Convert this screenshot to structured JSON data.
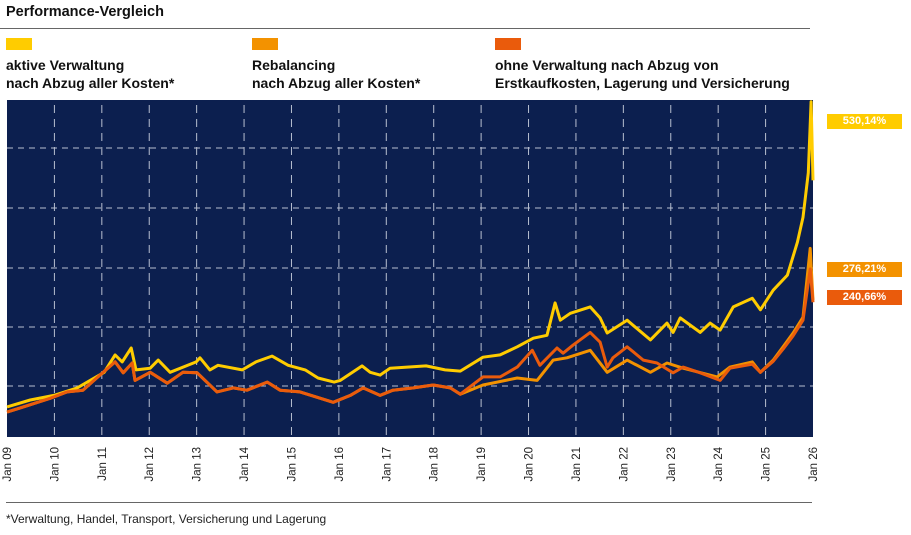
{
  "title": "Performance-Vergleich",
  "footnote": "*Verwaltung, Handel, Transport, Versicherung und Lagerung",
  "chart_data": {
    "type": "line",
    "title": "Performance-Vergleich",
    "xlabel": "",
    "ylabel": "",
    "x_tick_labels": [
      "Jan 09",
      "Jan 10",
      "Jan 11",
      "Jan 12",
      "Jan 13",
      "Jan 14",
      "Jan 15",
      "Jan 16",
      "Jan 17",
      "Jan 18",
      "Jan 19",
      "Jan 20",
      "Jan 21",
      "Jan 22",
      "Jan 23",
      "Jan 24",
      "Jan 25",
      "Jan 26"
    ],
    "x_ticks": [
      2009,
      2010,
      2011,
      2012,
      2013,
      2014,
      2015,
      2016,
      2017,
      2018,
      2019,
      2020,
      2021,
      2022,
      2023,
      2024,
      2025,
      2026
    ],
    "xlim": [
      2009,
      2026
    ],
    "ylim": [
      -50,
      533
    ],
    "y_unit": "%",
    "grid": true,
    "background": "#0c1f4f",
    "legend_position": "top",
    "series": [
      {
        "name_line1": "aktive Verwaltung",
        "name_line2": "nach Abzug aller Kosten*",
        "color": "#ffcc00",
        "end_label": "530,14%",
        "points": [
          [
            2009.0,
            2
          ],
          [
            2009.49,
            14
          ],
          [
            2009.99,
            22
          ],
          [
            2010.48,
            35
          ],
          [
            2011.05,
            62
          ],
          [
            2011.28,
            92
          ],
          [
            2011.43,
            80
          ],
          [
            2011.62,
            104
          ],
          [
            2011.72,
            66
          ],
          [
            2012.02,
            69
          ],
          [
            2012.19,
            83
          ],
          [
            2012.44,
            62
          ],
          [
            2012.99,
            80
          ],
          [
            2013.07,
            87
          ],
          [
            2013.28,
            66
          ],
          [
            2013.45,
            74
          ],
          [
            2013.96,
            66
          ],
          [
            2014.25,
            80
          ],
          [
            2014.59,
            90
          ],
          [
            2014.93,
            74
          ],
          [
            2015.29,
            66
          ],
          [
            2015.56,
            52
          ],
          [
            2015.9,
            45
          ],
          [
            2016.03,
            48
          ],
          [
            2016.49,
            73
          ],
          [
            2016.66,
            62
          ],
          [
            2016.87,
            57
          ],
          [
            2017.08,
            69
          ],
          [
            2017.84,
            73
          ],
          [
            2018.24,
            66
          ],
          [
            2018.56,
            64
          ],
          [
            2019.04,
            88
          ],
          [
            2019.4,
            92
          ],
          [
            2019.76,
            106
          ],
          [
            2020.1,
            121
          ],
          [
            2020.39,
            126
          ],
          [
            2020.56,
            182
          ],
          [
            2020.67,
            152
          ],
          [
            2020.88,
            164
          ],
          [
            2021.3,
            175
          ],
          [
            2021.51,
            156
          ],
          [
            2021.66,
            130
          ],
          [
            2022.08,
            152
          ],
          [
            2022.57,
            118
          ],
          [
            2022.92,
            147
          ],
          [
            2023.05,
            131
          ],
          [
            2023.2,
            156
          ],
          [
            2023.62,
            131
          ],
          [
            2023.83,
            147
          ],
          [
            2024.04,
            135
          ],
          [
            2024.32,
            175
          ],
          [
            2024.72,
            190
          ],
          [
            2024.89,
            170
          ],
          [
            2025.16,
            204
          ],
          [
            2025.46,
            230
          ],
          [
            2025.67,
            287
          ],
          [
            2025.79,
            330
          ],
          [
            2025.9,
            407
          ],
          [
            2025.96,
            530.14
          ],
          [
            2026.0,
            394
          ]
        ]
      },
      {
        "name_line1": "Rebalancing",
        "name_line2": "nach Abzug aller Kosten*",
        "color": "#f39200",
        "end_label": "276,21%",
        "points": [
          [
            2009.0,
            -7
          ],
          [
            2009.27,
            0
          ],
          [
            2009.91,
            17
          ],
          [
            2010.27,
            28
          ],
          [
            2010.6,
            31
          ],
          [
            2010.96,
            57
          ],
          [
            2011.28,
            80
          ],
          [
            2011.45,
            61
          ],
          [
            2011.64,
            78
          ],
          [
            2011.7,
            48
          ],
          [
            2012.02,
            62
          ],
          [
            2012.38,
            43
          ],
          [
            2012.71,
            62
          ],
          [
            2013.01,
            61
          ],
          [
            2013.43,
            28
          ],
          [
            2013.77,
            35
          ],
          [
            2014.06,
            31
          ],
          [
            2014.49,
            45
          ],
          [
            2014.76,
            31
          ],
          [
            2015.18,
            28
          ],
          [
            2015.88,
            10
          ],
          [
            2016.24,
            22
          ],
          [
            2016.51,
            35
          ],
          [
            2016.87,
            22
          ],
          [
            2017.14,
            31
          ],
          [
            2017.57,
            35
          ],
          [
            2017.99,
            40
          ],
          [
            2018.35,
            35
          ],
          [
            2018.56,
            24
          ],
          [
            2019.04,
            40
          ],
          [
            2019.76,
            52
          ],
          [
            2020.18,
            48
          ],
          [
            2020.52,
            83
          ],
          [
            2020.81,
            87
          ],
          [
            2021.3,
            100
          ],
          [
            2021.66,
            62
          ],
          [
            2022.08,
            83
          ],
          [
            2022.57,
            62
          ],
          [
            2022.92,
            78
          ],
          [
            2023.26,
            69
          ],
          [
            2023.98,
            54
          ],
          [
            2024.25,
            71
          ],
          [
            2024.72,
            80
          ],
          [
            2024.89,
            62
          ],
          [
            2025.16,
            83
          ],
          [
            2025.37,
            106
          ],
          [
            2025.58,
            130
          ],
          [
            2025.79,
            157
          ],
          [
            2025.94,
            276.21
          ],
          [
            2026.0,
            187
          ]
        ]
      },
      {
        "name_line1": "ohne Verwaltung nach Abzug von",
        "name_line2": "Erstkaufkosten, Lagerung und Versicherung",
        "color": "#ea5b0c",
        "end_label": "240,66%",
        "points": [
          [
            2009.0,
            -7
          ],
          [
            2009.27,
            0
          ],
          [
            2009.91,
            17
          ],
          [
            2010.27,
            28
          ],
          [
            2010.6,
            31
          ],
          [
            2010.96,
            57
          ],
          [
            2011.28,
            80
          ],
          [
            2011.45,
            61
          ],
          [
            2011.64,
            78
          ],
          [
            2011.7,
            48
          ],
          [
            2012.02,
            62
          ],
          [
            2012.38,
            43
          ],
          [
            2012.71,
            62
          ],
          [
            2013.01,
            61
          ],
          [
            2013.43,
            28
          ],
          [
            2013.77,
            35
          ],
          [
            2014.06,
            31
          ],
          [
            2014.49,
            45
          ],
          [
            2014.76,
            31
          ],
          [
            2015.18,
            28
          ],
          [
            2015.88,
            10
          ],
          [
            2016.24,
            22
          ],
          [
            2016.51,
            35
          ],
          [
            2016.87,
            22
          ],
          [
            2017.14,
            31
          ],
          [
            2017.57,
            35
          ],
          [
            2017.99,
            40
          ],
          [
            2018.35,
            35
          ],
          [
            2018.56,
            24
          ],
          [
            2019.04,
            54
          ],
          [
            2019.4,
            54
          ],
          [
            2019.76,
            71
          ],
          [
            2020.08,
            100
          ],
          [
            2020.24,
            74
          ],
          [
            2020.6,
            104
          ],
          [
            2020.73,
            95
          ],
          [
            2020.94,
            109
          ],
          [
            2021.3,
            131
          ],
          [
            2021.51,
            114
          ],
          [
            2021.66,
            71
          ],
          [
            2021.78,
            87
          ],
          [
            2022.08,
            106
          ],
          [
            2022.42,
            83
          ],
          [
            2022.71,
            78
          ],
          [
            2023.05,
            61
          ],
          [
            2023.26,
            71
          ],
          [
            2023.62,
            61
          ],
          [
            2024.04,
            48
          ],
          [
            2024.25,
            69
          ],
          [
            2024.72,
            76
          ],
          [
            2024.89,
            62
          ],
          [
            2025.16,
            81
          ],
          [
            2025.37,
            102
          ],
          [
            2025.58,
            125
          ],
          [
            2025.79,
            152
          ],
          [
            2025.94,
            240.66
          ],
          [
            2026.0,
            183
          ]
        ]
      }
    ]
  }
}
